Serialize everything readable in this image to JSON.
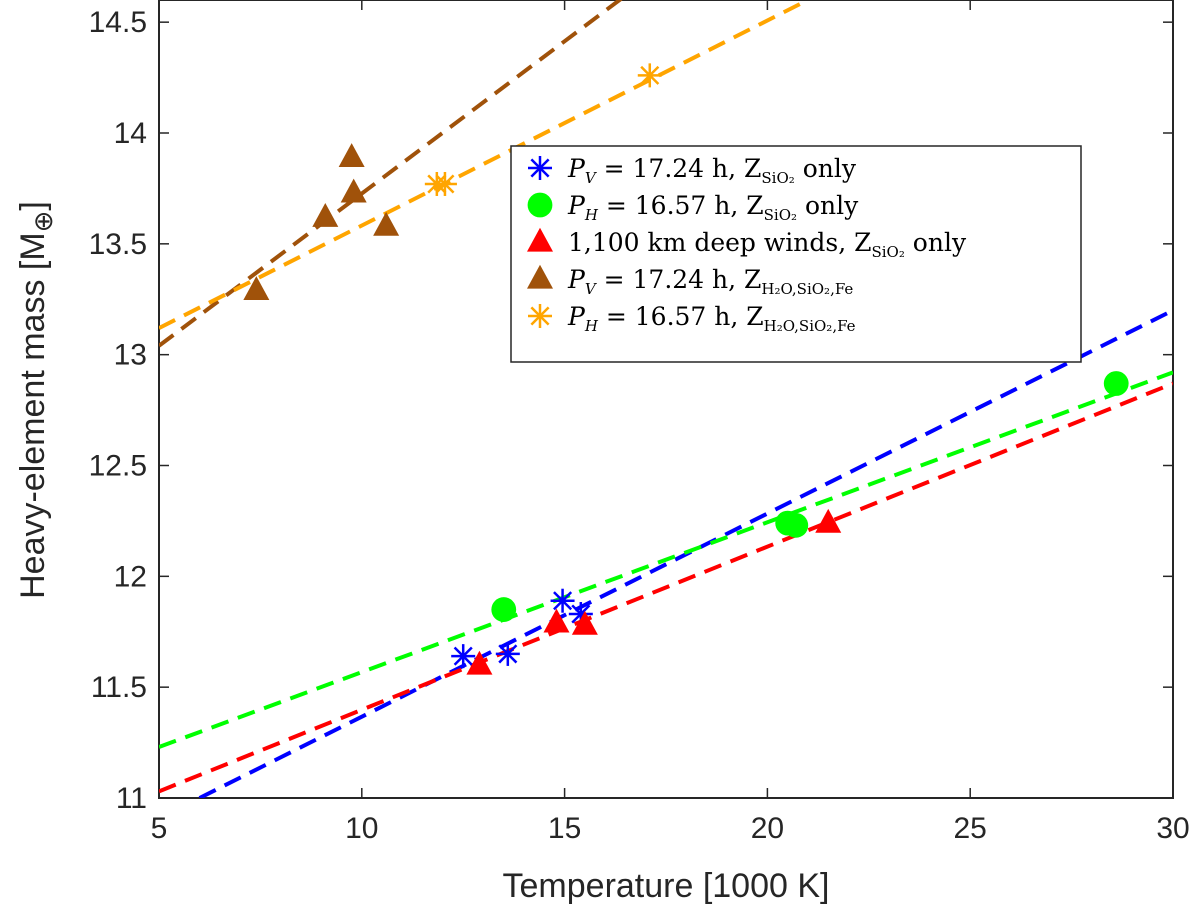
{
  "chart_data": {
    "type": "scatter",
    "xlabel": "Temperature [1000 K]",
    "ylabel": "Heavy-element mass [M",
    "ylabel_subscript": "⊕",
    "ylabel_close": "]",
    "xlim": [
      5,
      30
    ],
    "ylim": [
      11,
      14.6
    ],
    "x_ticks": [
      5,
      10,
      15,
      20,
      25,
      30
    ],
    "x_tick_labels": [
      "5",
      "10",
      "15",
      "20",
      "25",
      "30"
    ],
    "y_ticks": [
      11,
      11.5,
      12,
      12.5,
      13,
      13.5,
      14,
      14.5
    ],
    "y_tick_labels": [
      "11",
      "11.5",
      "12",
      "12.5",
      "13",
      "13.5",
      "14",
      "14.5"
    ],
    "grid": false,
    "legend_position": "center-right",
    "series": [
      {
        "name": "PV_SiO2",
        "label_main": "P",
        "label_sub_italic": "V",
        "label_rest": " = 17.24 h, Z",
        "label_subscript": "SiO₂",
        "label_tail": " only",
        "color": "#0000ff",
        "marker": "asterisk",
        "points": [
          [
            12.5,
            11.64
          ],
          [
            13.6,
            11.65
          ],
          [
            14.95,
            11.89
          ],
          [
            15.4,
            11.83
          ]
        ],
        "fit": [
          [
            6.0,
            11.0
          ],
          [
            30.0,
            13.2
          ]
        ]
      },
      {
        "name": "PH_SiO2",
        "label_main": "P",
        "label_sub_italic": "H",
        "label_rest": " = 16.57 h, Z",
        "label_subscript": "SiO₂",
        "label_tail": " only",
        "color": "#00ff00",
        "marker": "circle",
        "points": [
          [
            13.5,
            11.85
          ],
          [
            20.5,
            12.24
          ],
          [
            20.7,
            12.23
          ],
          [
            28.6,
            12.87
          ]
        ],
        "fit": [
          [
            5.0,
            11.23
          ],
          [
            30.0,
            12.92
          ]
        ]
      },
      {
        "name": "deep_winds_SiO2",
        "label_main": "",
        "label_sub_italic": "",
        "label_rest": "1,100 km deep winds, Z",
        "label_subscript": "SiO₂",
        "label_tail": " only",
        "color": "#ff0000",
        "marker": "triangle",
        "points": [
          [
            12.9,
            11.6
          ],
          [
            14.8,
            11.79
          ],
          [
            15.5,
            11.78
          ],
          [
            21.5,
            12.24
          ]
        ],
        "fit": [
          [
            5.0,
            11.03
          ],
          [
            30.0,
            12.87
          ]
        ]
      },
      {
        "name": "PV_H2O_SiO2_Fe",
        "label_main": "P",
        "label_sub_italic": "V",
        "label_rest": " = 17.24 h, Z",
        "label_subscript": "H₂O,SiO₂,Fe",
        "label_tail": "",
        "color": "#a0520a",
        "marker": "triangle",
        "points": [
          [
            7.4,
            13.29
          ],
          [
            9.1,
            13.62
          ],
          [
            9.75,
            13.89
          ],
          [
            9.8,
            13.73
          ],
          [
            10.6,
            13.58
          ]
        ],
        "fit": [
          [
            5.0,
            13.04
          ],
          [
            16.5,
            14.62
          ]
        ]
      },
      {
        "name": "PH_H2O_SiO2_Fe",
        "label_main": "P",
        "label_sub_italic": "H",
        "label_rest": " = 16.57 h, Z",
        "label_subscript": "H₂O,SiO₂,Fe",
        "label_tail": "",
        "color": "#ffa500",
        "marker": "asterisk",
        "points": [
          [
            11.85,
            13.77
          ],
          [
            12.05,
            13.77
          ],
          [
            17.1,
            14.26
          ]
        ],
        "fit": [
          [
            5.0,
            13.12
          ],
          [
            21.0,
            14.6
          ]
        ]
      }
    ]
  }
}
